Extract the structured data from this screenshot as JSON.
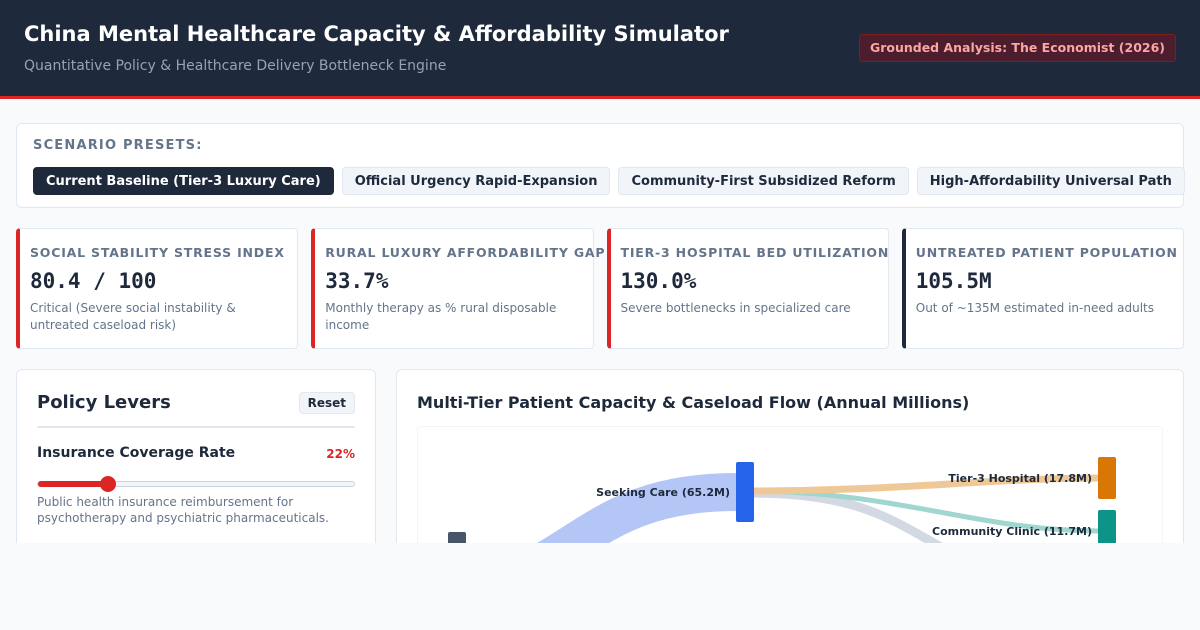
{
  "header": {
    "title": "China Mental Healthcare Capacity & Affordability Simulator",
    "subtitle": "Quantitative Policy & Healthcare Delivery Bottleneck Engine",
    "badge": "Grounded Analysis: The Economist (2026)"
  },
  "presets": {
    "label": "SCENARIO PRESETS:",
    "items": [
      {
        "label": "Current Baseline (Tier-3 Luxury Care)",
        "active": true
      },
      {
        "label": "Official Urgency Rapid-Expansion",
        "active": false
      },
      {
        "label": "Community-First Subsidized Reform",
        "active": false
      },
      {
        "label": "High-Affordability Universal Path",
        "active": false
      }
    ]
  },
  "kpis": [
    {
      "label": "SOCIAL STABILITY STRESS INDEX",
      "value": "80.4 / 100",
      "desc": "Critical (Severe social instability & untreated caseload risk)",
      "accent": "#dc2626"
    },
    {
      "label": "RURAL LUXURY AFFORDABILITY GAP",
      "value": "33.7%",
      "desc": "Monthly therapy as % rural disposable income",
      "accent": "#dc2626"
    },
    {
      "label": "TIER-3 HOSPITAL BED UTILIZATION",
      "value": "130.0%",
      "desc": "Severe bottlenecks in specialized care",
      "accent": "#dc2626"
    },
    {
      "label": "UNTREATED PATIENT POPULATION",
      "value": "105.5M",
      "desc": "Out of ~135M estimated in-need adults",
      "accent": "#1e293b"
    }
  ],
  "levers": {
    "title": "Policy Levers",
    "reset_label": "Reset",
    "insurance": {
      "label": "Insurance Coverage Rate",
      "value_text": "22%",
      "value": 22,
      "min": 0,
      "max": 100,
      "help": "Public health insurance reimbursement for psychotherapy and psychiatric pharmaceuticals."
    }
  },
  "flow": {
    "title": "Multi-Tier Patient Capacity & Caseload Flow (Annual Millions)",
    "nodes": {
      "seeking": {
        "label": "Seeking Care (65.2M)",
        "color": "#2563eb"
      },
      "tier3": {
        "label": "Tier-3 Hospital (17.8M)",
        "color": "#d97706"
      },
      "community": {
        "label": "Community Clinic (11.7M)",
        "color": "#0d9488"
      },
      "source": {
        "color": "#475569"
      }
    },
    "link_colors": {
      "intake": "#b4c6f5",
      "tier3": "#efc898",
      "community": "#9fd6cf",
      "other": "#d3d9e2"
    }
  }
}
